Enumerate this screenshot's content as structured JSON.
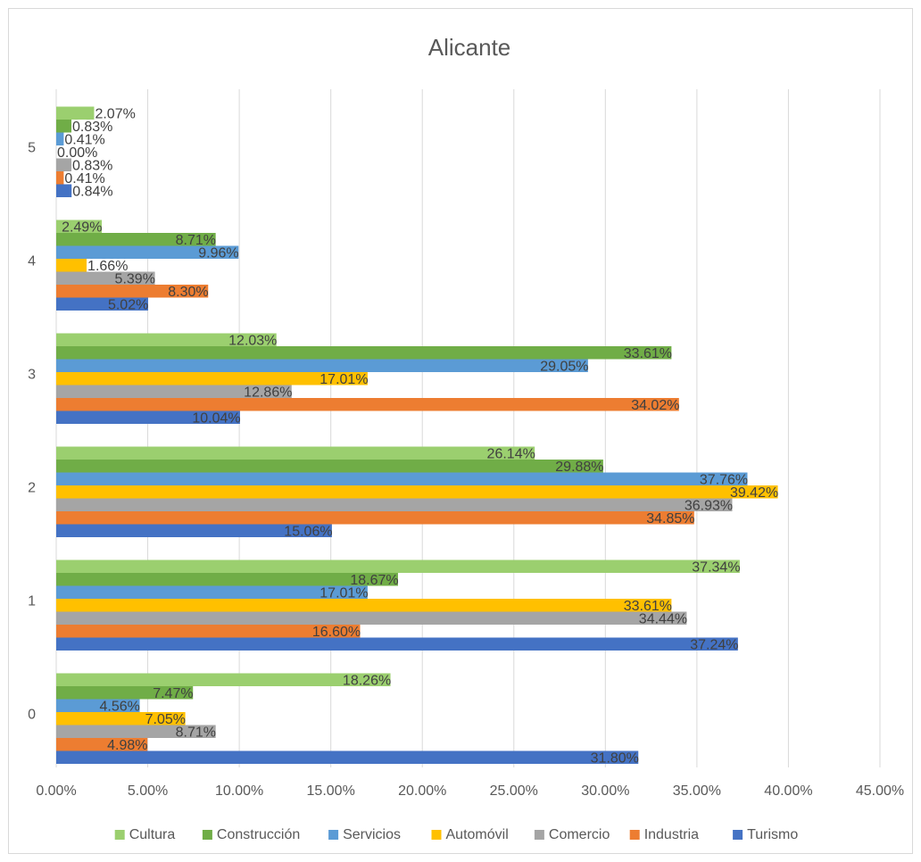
{
  "chart_data": {
    "type": "bar",
    "orientation": "horizontal",
    "title": "Alicante",
    "categories": [
      "0",
      "1",
      "2",
      "3",
      "4",
      "5"
    ],
    "xlim": [
      0,
      45
    ],
    "x_ticks": [
      "0.00%",
      "5.00%",
      "10.00%",
      "15.00%",
      "20.00%",
      "25.00%",
      "30.00%",
      "35.00%",
      "40.00%",
      "45.00%"
    ],
    "grid": true,
    "legend_position": "bottom",
    "series": [
      {
        "name": "Turismo",
        "color": "#4472C4",
        "values": [
          31.8,
          37.24,
          15.06,
          10.04,
          5.02,
          0.84
        ],
        "labels": [
          "31.80%",
          "37.24%",
          "15.06%",
          "10.04%",
          "5.02%",
          "0.84%"
        ]
      },
      {
        "name": "Industria",
        "color": "#ED7D31",
        "values": [
          4.98,
          16.6,
          34.85,
          34.02,
          8.3,
          0.41
        ],
        "labels": [
          "4.98%",
          "16.60%",
          "34.85%",
          "34.02%",
          "8.30%",
          "0.41%"
        ]
      },
      {
        "name": "Comercio",
        "color": "#A5A5A5",
        "values": [
          8.71,
          34.44,
          36.93,
          12.86,
          5.39,
          0.83
        ],
        "labels": [
          "8.71%",
          "34.44%",
          "36.93%",
          "12.86%",
          "5.39%",
          "0.83%"
        ]
      },
      {
        "name": "Automóvil",
        "color": "#FFC000",
        "values": [
          7.05,
          33.61,
          39.42,
          17.01,
          1.66,
          0.0
        ],
        "labels": [
          "7.05%",
          "33.61%",
          "39.42%",
          "17.01%",
          "1.66%",
          "0.00%"
        ]
      },
      {
        "name": "Servicios",
        "color": "#5B9BD5",
        "values": [
          4.56,
          17.01,
          37.76,
          29.05,
          9.96,
          0.41
        ],
        "labels": [
          "4.56%",
          "17.01%",
          "37.76%",
          "29.05%",
          "9.96%",
          "0.41%"
        ]
      },
      {
        "name": "Construcción",
        "color": "#70AD47",
        "values": [
          7.47,
          18.67,
          29.88,
          33.61,
          8.71,
          0.83
        ],
        "labels": [
          "7.47%",
          "18.67%",
          "29.88%",
          "33.61%",
          "8.71%",
          "0.83%"
        ]
      },
      {
        "name": "Cultura",
        "color": "#9BCF6F",
        "values": [
          18.26,
          37.34,
          26.14,
          12.03,
          2.49,
          2.07
        ],
        "labels": [
          "18.26%",
          "37.34%",
          "26.14%",
          "12.03%",
          "2.49%",
          "2.07%"
        ]
      }
    ],
    "legend_order": [
      "Cultura",
      "Construcción",
      "Servicios",
      "Automóvil",
      "Comercio",
      "Industria",
      "Turismo"
    ]
  }
}
